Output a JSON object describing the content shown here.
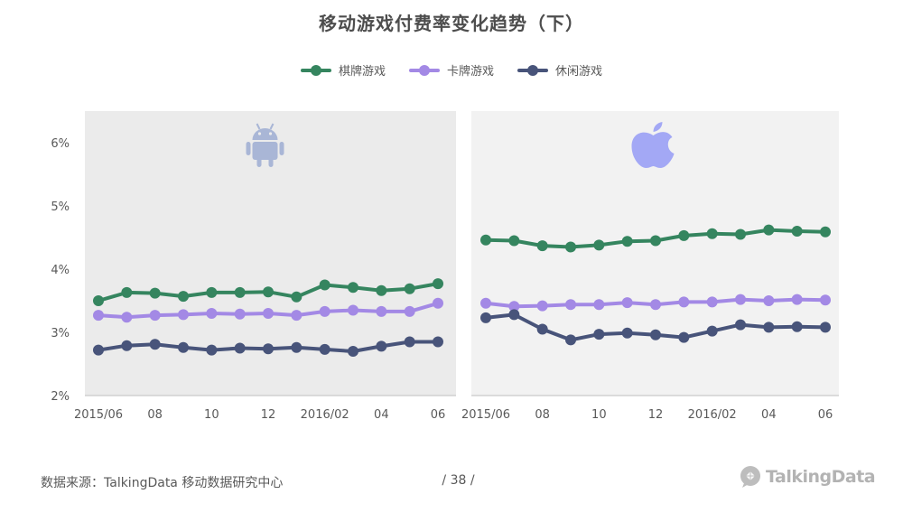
{
  "title": "移动游戏付费率变化趋势（下）",
  "legend": [
    {
      "name": "棋牌游戏",
      "color": "#35855f"
    },
    {
      "name": "卡牌游戏",
      "color": "#a389e5"
    },
    {
      "name": "休闲游戏",
      "color": "#48547a"
    }
  ],
  "chart_data": [
    {
      "type": "line",
      "platform_icon": "android-icon",
      "x": [
        "2015/06",
        "07",
        "08",
        "09",
        "10",
        "11",
        "12",
        "2016/01",
        "02",
        "03",
        "04",
        "05",
        "06"
      ],
      "tick_labels": [
        "2015/06",
        "",
        "08",
        "",
        "10",
        "",
        "12",
        "",
        "2016/02",
        "",
        "04",
        "",
        "06"
      ],
      "ylim": [
        2,
        6.5
      ],
      "y_ticks": [
        "2%",
        "3%",
        "4%",
        "5%",
        "6%"
      ],
      "y_tick_values": [
        2,
        3,
        4,
        5,
        6
      ],
      "series": [
        {
          "name": "棋牌游戏",
          "values": [
            3.5,
            3.63,
            3.62,
            3.57,
            3.63,
            3.63,
            3.64,
            3.56,
            3.75,
            3.71,
            3.66,
            3.69,
            3.77
          ]
        },
        {
          "name": "卡牌游戏",
          "values": [
            3.27,
            3.24,
            3.27,
            3.28,
            3.3,
            3.29,
            3.3,
            3.27,
            3.33,
            3.35,
            3.33,
            3.33,
            3.46
          ]
        },
        {
          "name": "休闲游戏",
          "values": [
            2.72,
            2.79,
            2.81,
            2.76,
            2.72,
            2.75,
            2.74,
            2.76,
            2.73,
            2.7,
            2.78,
            2.85,
            2.85
          ]
        }
      ],
      "background": "#ebebeb"
    },
    {
      "type": "line",
      "platform_icon": "apple-icon",
      "x": [
        "2015/06",
        "07",
        "08",
        "09",
        "10",
        "11",
        "12",
        "2016/01",
        "02",
        "03",
        "04",
        "05",
        "06"
      ],
      "tick_labels": [
        "2015/06",
        "",
        "08",
        "",
        "10",
        "",
        "12",
        "",
        "2016/02",
        "",
        "04",
        "",
        "06"
      ],
      "ylim": [
        2,
        6.5
      ],
      "series": [
        {
          "name": "棋牌游戏",
          "values": [
            4.46,
            4.45,
            4.37,
            4.35,
            4.38,
            4.44,
            4.45,
            4.53,
            4.56,
            4.55,
            4.62,
            4.6,
            4.59
          ]
        },
        {
          "name": "卡牌游戏",
          "values": [
            3.46,
            3.41,
            3.42,
            3.44,
            3.44,
            3.47,
            3.44,
            3.48,
            3.48,
            3.52,
            3.5,
            3.52,
            3.51
          ]
        },
        {
          "name": "休闲游戏",
          "values": [
            3.23,
            3.28,
            3.05,
            2.88,
            2.97,
            2.99,
            2.96,
            2.92,
            3.02,
            3.12,
            3.08,
            3.09,
            3.08
          ]
        }
      ],
      "background": "#f2f2f2"
    }
  ],
  "footer": {
    "source": "数据来源：TalkingData  移动数据研究中心",
    "page": "/  38  /",
    "logo_text": "TalkingData"
  }
}
